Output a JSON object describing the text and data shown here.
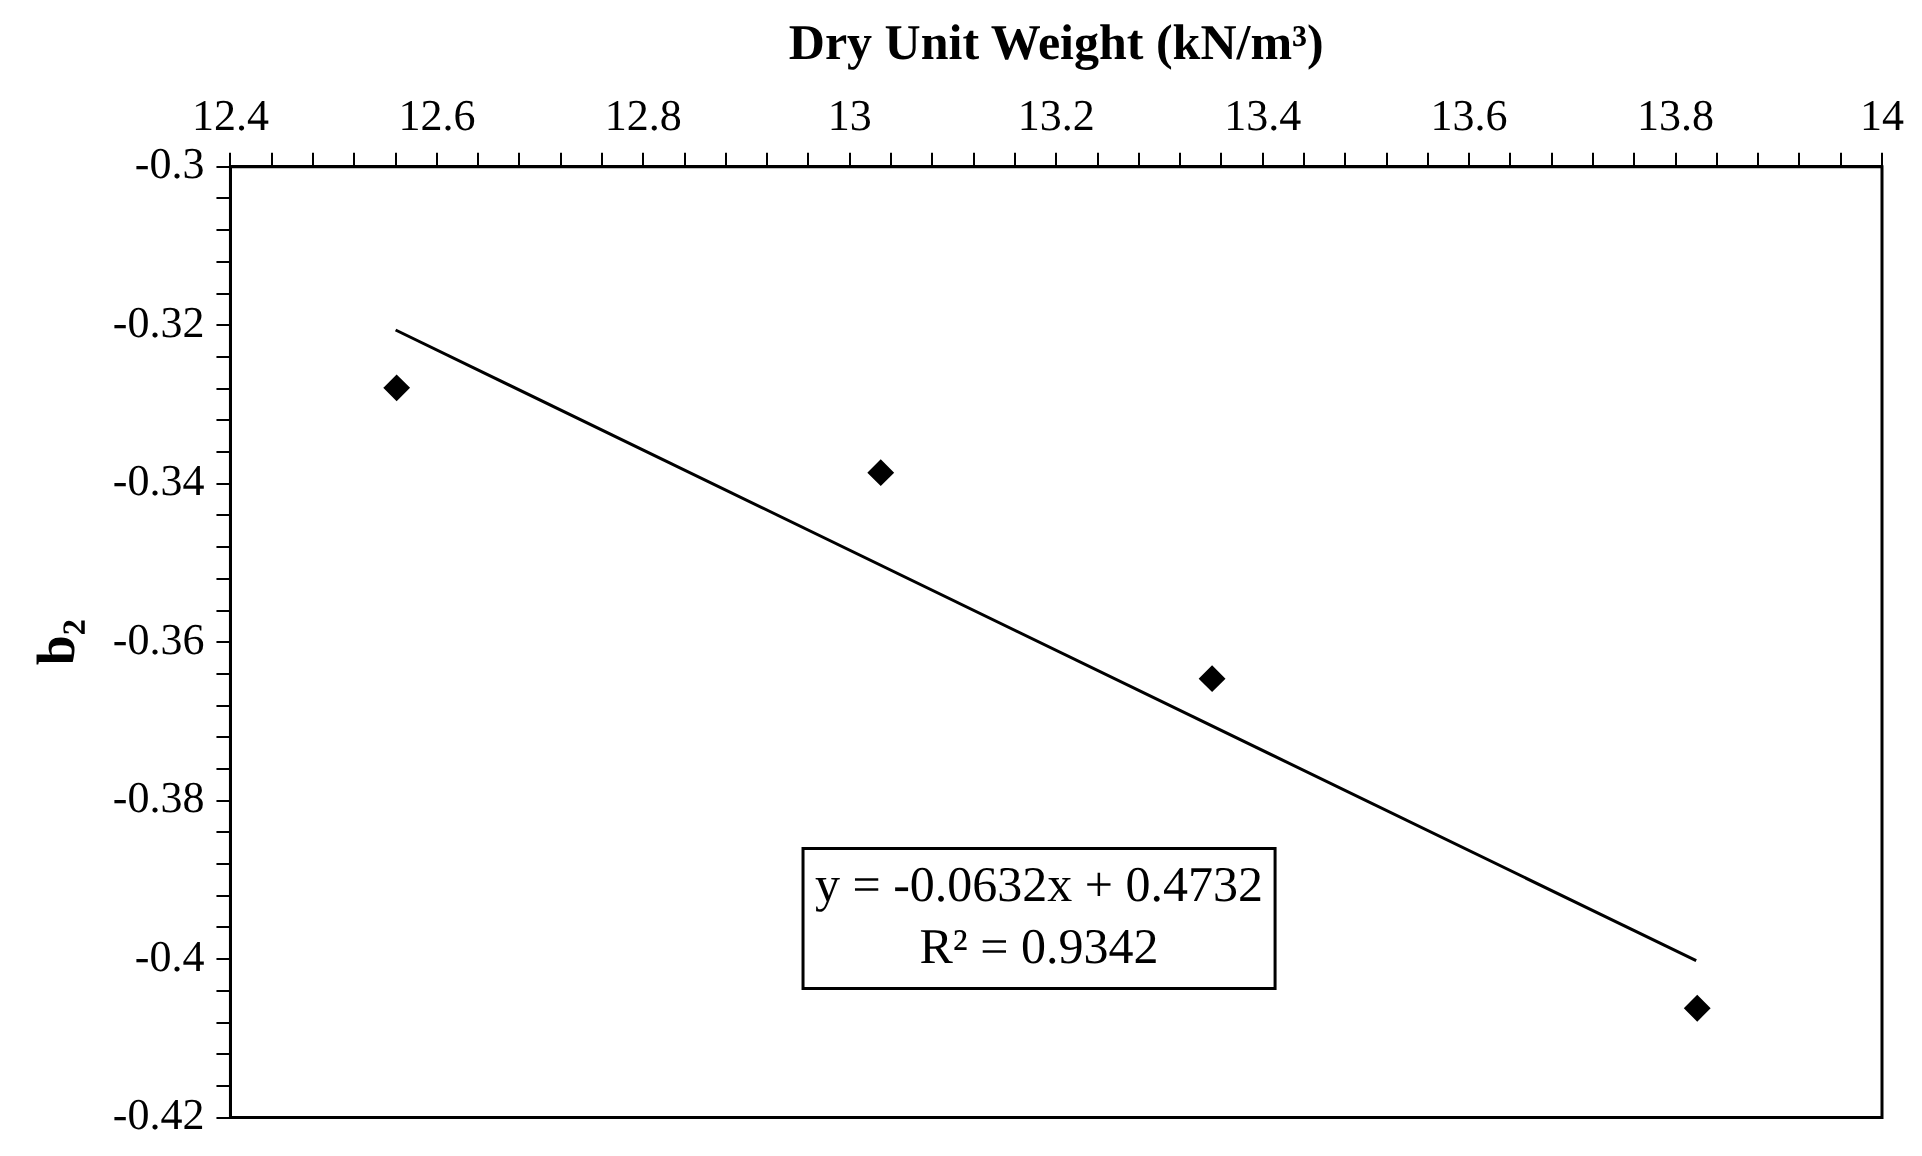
{
  "chart_data": {
    "type": "scatter",
    "xlabel": "Dry Unit Weight (kN/m³)",
    "ylabel": "b₂",
    "x": [
      12.561,
      13.03,
      13.351,
      13.821
    ],
    "series": [
      {
        "color": "#000000",
        "marker": "diamond",
        "values": [
          -0.3279,
          -0.3386,
          -0.3646,
          -0.4062
        ]
      },
      {
        "type": "line",
        "color": "#000000",
        "marker": "none",
        "line_style": "solid",
        "x": [
          12.56,
          13.82
        ],
        "values": [
          -0.3206,
          -0.4002
        ]
      }
    ],
    "xlim": [
      12.4,
      14
    ],
    "xticks": [
      12.4,
      {
        "value": 12.44,
        "label": null
      },
      {
        "value": 12.48,
        "label": null
      },
      {
        "value": 12.52,
        "label": null
      },
      {
        "value": 12.56,
        "label": null
      },
      12.6,
      {
        "value": 12.64,
        "label": null
      },
      {
        "value": 12.68,
        "label": null
      },
      {
        "value": 12.72,
        "label": null
      },
      {
        "value": 12.76,
        "label": null
      },
      12.8,
      {
        "value": 12.84,
        "label": null
      },
      {
        "value": 12.88,
        "label": null
      },
      {
        "value": 12.92,
        "label": null
      },
      {
        "value": 12.96,
        "label": null
      },
      13,
      {
        "value": 13.04,
        "label": null
      },
      {
        "value": 13.08,
        "label": null
      },
      {
        "value": 13.12,
        "label": null
      },
      {
        "value": 13.16,
        "label": null
      },
      13.2,
      {
        "value": 13.24,
        "label": null
      },
      {
        "value": 13.28,
        "label": null
      },
      {
        "value": 13.32,
        "label": null
      },
      {
        "value": 13.36,
        "label": null
      },
      13.4,
      {
        "value": 13.44,
        "label": null
      },
      {
        "value": 13.48,
        "label": null
      },
      {
        "value": 13.52,
        "label": null
      },
      {
        "value": 13.56,
        "label": null
      },
      13.6,
      {
        "value": 13.64,
        "label": null
      },
      {
        "value": 13.68,
        "label": null
      },
      {
        "value": 13.72,
        "label": null
      },
      {
        "value": 13.76,
        "label": null
      },
      13.8,
      {
        "value": 13.84,
        "label": null
      },
      {
        "value": 13.88,
        "label": null
      },
      {
        "value": 13.92,
        "label": null
      },
      {
        "value": 13.96,
        "label": null
      },
      14
    ],
    "ylim": [
      -0.42,
      -0.3
    ],
    "yticks": [
      -0.42,
      {
        "value": -0.416,
        "label": null
      },
      {
        "value": -0.412,
        "label": null
      },
      {
        "value": -0.408,
        "label": null
      },
      {
        "value": -0.404,
        "label": null
      },
      -0.4,
      {
        "value": -0.396,
        "label": null
      },
      {
        "value": -0.392,
        "label": null
      },
      {
        "value": -0.388,
        "label": null
      },
      {
        "value": -0.384,
        "label": null
      },
      -0.38,
      {
        "value": -0.376,
        "label": null
      },
      {
        "value": -0.372,
        "label": null
      },
      {
        "value": -0.368,
        "label": null
      },
      {
        "value": -0.364,
        "label": null
      },
      -0.36,
      {
        "value": -0.356,
        "label": null
      },
      {
        "value": -0.352,
        "label": null
      },
      {
        "value": -0.348,
        "label": null
      },
      {
        "value": -0.344,
        "label": null
      },
      -0.34,
      {
        "value": -0.336,
        "label": null
      },
      {
        "value": -0.332,
        "label": null
      },
      {
        "value": -0.328,
        "label": null
      },
      {
        "value": -0.324,
        "label": null
      },
      -0.32,
      {
        "value": -0.316,
        "label": null
      },
      {
        "value": -0.312,
        "label": null
      },
      {
        "value": -0.308,
        "label": null
      },
      {
        "value": -0.304,
        "label": null
      },
      -0.3
    ],
    "annotations": [
      "y = -0.0632x + 0.4732",
      "R² = 0.9342"
    ],
    "grid": false,
    "legend": false
  }
}
